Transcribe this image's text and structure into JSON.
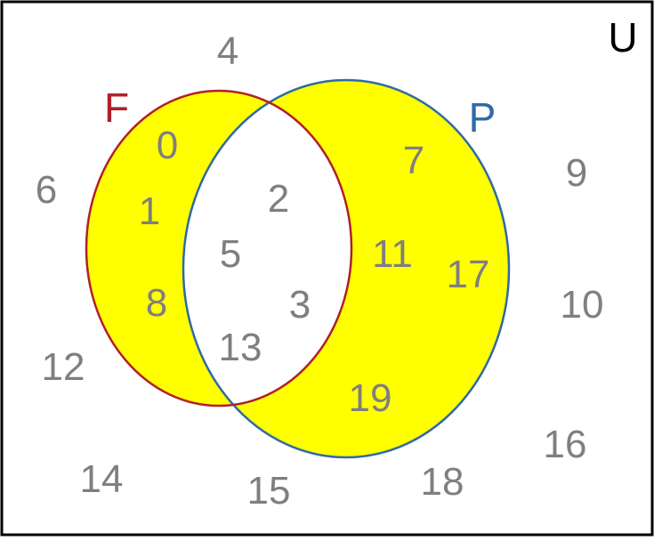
{
  "universe_label": "U",
  "set_f": {
    "label": "F",
    "color": "#b0202a"
  },
  "set_p": {
    "label": "P",
    "color": "#2f6aa6"
  },
  "shade_color": "#ffff00",
  "number_color": "#7f7f7f",
  "regions": {
    "only_f": [
      "0",
      "1",
      "8"
    ],
    "intersection": [
      "2",
      "5",
      "3",
      "13"
    ],
    "only_p": [
      "7",
      "11",
      "17",
      "19"
    ],
    "outside": [
      "4",
      "6",
      "9",
      "10",
      "12",
      "14",
      "15",
      "16",
      "18"
    ]
  }
}
